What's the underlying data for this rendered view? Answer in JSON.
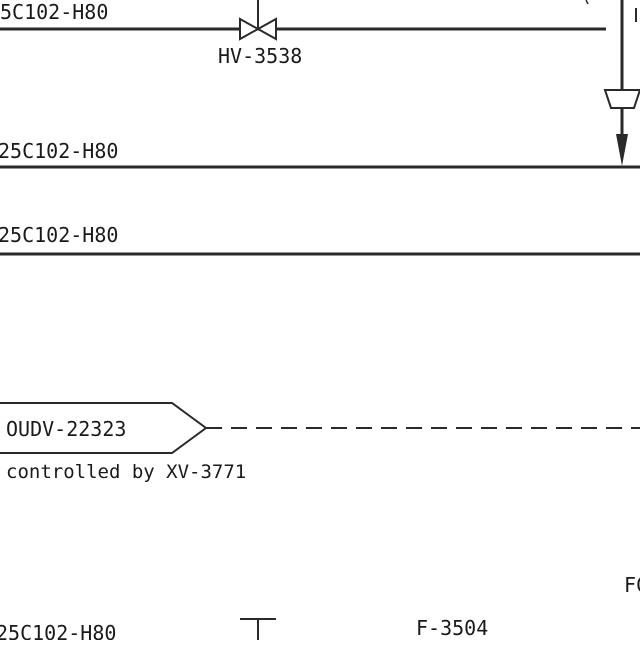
{
  "diagram": {
    "line_color": "#2a2a2a",
    "labels": {
      "line_top": "5C102-H80",
      "valve_tag": "HV-3538",
      "line_mid_1": "25C102-H80",
      "line_mid_2": "25C102-H80",
      "offpage_tag": "OUDV-22323",
      "controlled_note": "controlled by XV-3771",
      "line_bottom": "25C102-H80",
      "filter_tag": "F-3504",
      "partial_tag": "FC"
    },
    "icons": [
      "gate-valve-icon",
      "reducer-icon",
      "flow-arrow-icon",
      "offpage-connector-icon"
    ]
  }
}
